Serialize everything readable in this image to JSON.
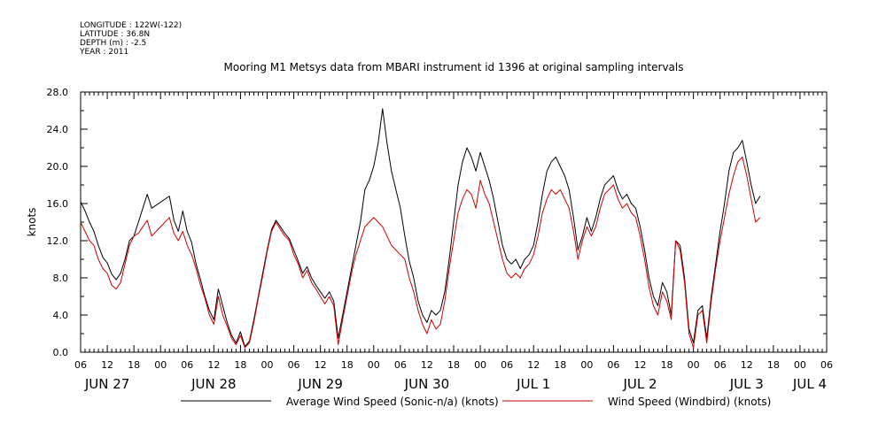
{
  "meta": {
    "lines": [
      "LONGITUDE : 122W(-122)",
      "LATITUDE : 36.8N",
      "DEPTH (m) : -2.5",
      "YEAR : 2011"
    ]
  },
  "colors": {
    "sonic": "#000000",
    "windbird": "#cc0000",
    "axis": "#000000"
  },
  "chart_data": {
    "type": "line",
    "title": "Mooring M1 Metsys data from MBARI instrument id 1396 at original sampling intervals",
    "xlabel": "",
    "ylabel": "knots",
    "x_unit": "hours since 06:00 Jun 27 2011",
    "xlim": [
      0,
      168
    ],
    "ylim": [
      0,
      28
    ],
    "yticks": [
      "0.0",
      "4.0",
      "8.0",
      "12.0",
      "16.0",
      "20.0",
      "24.0",
      "28.0"
    ],
    "yticks_values": [
      0,
      4,
      8,
      12,
      16,
      20,
      24,
      28
    ],
    "xtick_hours": [
      "06",
      "12",
      "18",
      "00",
      "06",
      "12",
      "18",
      "00",
      "06",
      "12",
      "18",
      "00",
      "06",
      "12",
      "18",
      "00",
      "06",
      "12",
      "18",
      "00",
      "06",
      "12",
      "18",
      "00",
      "06",
      "12",
      "18",
      "00",
      "06"
    ],
    "date_labels": [
      "JUN 27",
      "JUN 28",
      "JUN 29",
      "JUN 30",
      "JUL  1",
      "JUL  2",
      "JUL  3",
      "JUL 4"
    ],
    "date_label_hours": [
      6,
      30,
      54,
      78,
      102,
      126,
      150,
      168
    ],
    "grid": false,
    "legend_position": "bottom",
    "series": [
      {
        "name": "Average Wind Speed (Sonic-n/a) (knots)",
        "color": "#000000",
        "points": [
          [
            0,
            16.2
          ],
          [
            1,
            15.2
          ],
          [
            2,
            14.0
          ],
          [
            3,
            13.0
          ],
          [
            4,
            11.5
          ],
          [
            5,
            10.2
          ],
          [
            6,
            9.6
          ],
          [
            7,
            8.4
          ],
          [
            8,
            7.8
          ],
          [
            9,
            8.5
          ],
          [
            10,
            10.0
          ],
          [
            11,
            12.0
          ],
          [
            12,
            12.5
          ],
          [
            13,
            14.0
          ],
          [
            14,
            15.5
          ],
          [
            15,
            17.0
          ],
          [
            16,
            15.5
          ],
          [
            20,
            16.8
          ],
          [
            21,
            14.2
          ],
          [
            22,
            13.0
          ],
          [
            23,
            15.2
          ],
          [
            24,
            13.0
          ],
          [
            25,
            11.8
          ],
          [
            26,
            9.5
          ],
          [
            27,
            7.8
          ],
          [
            28,
            6.0
          ],
          [
            29,
            4.5
          ],
          [
            30,
            3.5
          ],
          [
            31,
            6.8
          ],
          [
            32,
            5.0
          ],
          [
            33,
            3.2
          ],
          [
            34,
            1.8
          ],
          [
            35,
            1.0
          ],
          [
            36,
            2.2
          ],
          [
            37,
            0.6
          ],
          [
            38,
            1.2
          ],
          [
            39,
            3.5
          ],
          [
            40,
            6.0
          ],
          [
            41,
            8.5
          ],
          [
            42,
            11.0
          ],
          [
            43,
            13.2
          ],
          [
            44,
            14.2
          ],
          [
            45,
            13.5
          ],
          [
            46,
            12.8
          ],
          [
            47,
            12.2
          ],
          [
            48,
            11.0
          ],
          [
            49,
            9.8
          ],
          [
            50,
            8.5
          ],
          [
            51,
            9.2
          ],
          [
            52,
            8.0
          ],
          [
            53,
            7.2
          ],
          [
            54,
            6.5
          ],
          [
            55,
            5.8
          ],
          [
            56,
            6.5
          ],
          [
            57,
            5.5
          ],
          [
            58,
            1.5
          ],
          [
            59,
            4.0
          ],
          [
            60,
            6.5
          ],
          [
            61,
            9.0
          ],
          [
            62,
            11.5
          ],
          [
            63,
            14.0
          ],
          [
            64,
            17.5
          ],
          [
            65,
            18.5
          ],
          [
            66,
            20.0
          ],
          [
            67,
            22.5
          ],
          [
            68,
            26.2
          ],
          [
            69,
            22.5
          ],
          [
            70,
            19.5
          ],
          [
            71,
            17.5
          ],
          [
            72,
            15.5
          ],
          [
            73,
            12.5
          ],
          [
            74,
            9.8
          ],
          [
            75,
            8.0
          ],
          [
            76,
            5.5
          ],
          [
            77,
            4.0
          ],
          [
            78,
            3.2
          ],
          [
            79,
            4.5
          ],
          [
            80,
            4.0
          ],
          [
            81,
            4.5
          ],
          [
            82,
            6.5
          ],
          [
            83,
            10.0
          ],
          [
            84,
            14.0
          ],
          [
            85,
            18.0
          ],
          [
            86,
            20.5
          ],
          [
            87,
            22.0
          ],
          [
            88,
            21.0
          ],
          [
            89,
            19.5
          ],
          [
            90,
            21.5
          ],
          [
            91,
            20.0
          ],
          [
            92,
            18.5
          ],
          [
            93,
            16.5
          ],
          [
            94,
            14.0
          ],
          [
            95,
            11.5
          ],
          [
            96,
            10.0
          ],
          [
            97,
            9.5
          ],
          [
            98,
            10.0
          ],
          [
            99,
            9.0
          ],
          [
            100,
            10.0
          ],
          [
            101,
            10.5
          ],
          [
            102,
            11.5
          ],
          [
            103,
            14.0
          ],
          [
            104,
            17.0
          ],
          [
            105,
            19.5
          ],
          [
            106,
            20.5
          ],
          [
            107,
            21.0
          ],
          [
            108,
            20.0
          ],
          [
            109,
            19.0
          ],
          [
            110,
            17.5
          ],
          [
            111,
            14.5
          ],
          [
            112,
            11.0
          ],
          [
            113,
            12.5
          ],
          [
            114,
            14.5
          ],
          [
            115,
            13.0
          ],
          [
            116,
            14.5
          ],
          [
            117,
            16.5
          ],
          [
            118,
            18.0
          ],
          [
            119,
            18.5
          ],
          [
            120,
            19.0
          ],
          [
            121,
            17.5
          ],
          [
            122,
            16.5
          ],
          [
            123,
            17.0
          ],
          [
            124,
            16.0
          ],
          [
            125,
            15.5
          ],
          [
            126,
            13.5
          ],
          [
            127,
            11.0
          ],
          [
            128,
            8.0
          ],
          [
            129,
            6.0
          ],
          [
            130,
            5.0
          ],
          [
            131,
            7.5
          ],
          [
            132,
            6.5
          ],
          [
            133,
            4.0
          ],
          [
            134,
            12.0
          ],
          [
            135,
            11.5
          ],
          [
            136,
            8.0
          ],
          [
            137,
            2.5
          ],
          [
            138,
            1.0
          ],
          [
            139,
            4.5
          ],
          [
            140,
            5.0
          ],
          [
            141,
            1.5
          ],
          [
            142,
            6.0
          ],
          [
            143,
            9.5
          ],
          [
            144,
            13.0
          ],
          [
            145,
            16.0
          ],
          [
            146,
            19.5
          ],
          [
            147,
            21.5
          ],
          [
            148,
            22.0
          ],
          [
            149,
            22.8
          ],
          [
            150,
            20.5
          ],
          [
            151,
            18.0
          ],
          [
            152,
            16.0
          ],
          [
            153,
            16.8
          ]
        ]
      },
      {
        "name": "Wind Speed (Windbird) (knots)",
        "color": "#cc0000",
        "points": [
          [
            0,
            14.0
          ],
          [
            1,
            13.0
          ],
          [
            2,
            12.0
          ],
          [
            3,
            11.5
          ],
          [
            4,
            10.0
          ],
          [
            5,
            9.0
          ],
          [
            6,
            8.5
          ],
          [
            7,
            7.2
          ],
          [
            8,
            6.8
          ],
          [
            9,
            7.5
          ],
          [
            10,
            9.5
          ],
          [
            11,
            11.5
          ],
          [
            12,
            12.5
          ],
          [
            13,
            12.8
          ],
          [
            14,
            13.5
          ],
          [
            15,
            14.2
          ],
          [
            16,
            12.5
          ],
          [
            20,
            14.5
          ],
          [
            21,
            12.8
          ],
          [
            22,
            12.0
          ],
          [
            23,
            13.0
          ],
          [
            24,
            11.5
          ],
          [
            25,
            10.5
          ],
          [
            26,
            9.0
          ],
          [
            27,
            7.2
          ],
          [
            28,
            5.8
          ],
          [
            29,
            4.0
          ],
          [
            30,
            3.0
          ],
          [
            31,
            6.0
          ],
          [
            32,
            4.0
          ],
          [
            33,
            2.8
          ],
          [
            34,
            1.5
          ],
          [
            35,
            0.8
          ],
          [
            36,
            1.8
          ],
          [
            37,
            0.5
          ],
          [
            38,
            1.0
          ],
          [
            39,
            3.2
          ],
          [
            40,
            5.8
          ],
          [
            41,
            8.2
          ],
          [
            42,
            10.8
          ],
          [
            43,
            13.0
          ],
          [
            44,
            14.0
          ],
          [
            45,
            13.2
          ],
          [
            46,
            12.5
          ],
          [
            47,
            12.0
          ],
          [
            48,
            10.5
          ],
          [
            49,
            9.5
          ],
          [
            50,
            8.0
          ],
          [
            51,
            8.8
          ],
          [
            52,
            7.5
          ],
          [
            53,
            6.8
          ],
          [
            54,
            6.0
          ],
          [
            55,
            5.2
          ],
          [
            56,
            6.0
          ],
          [
            57,
            5.0
          ],
          [
            58,
            0.8
          ],
          [
            59,
            3.5
          ],
          [
            60,
            6.0
          ],
          [
            61,
            8.5
          ],
          [
            62,
            10.5
          ],
          [
            63,
            12.0
          ],
          [
            64,
            13.5
          ],
          [
            65,
            14.0
          ],
          [
            66,
            14.5
          ],
          [
            67,
            14.0
          ],
          [
            68,
            13.5
          ],
          [
            69,
            12.5
          ],
          [
            70,
            11.5
          ],
          [
            71,
            11.0
          ],
          [
            72,
            10.5
          ],
          [
            73,
            10.0
          ],
          [
            74,
            8.0
          ],
          [
            75,
            6.5
          ],
          [
            76,
            4.5
          ],
          [
            77,
            3.0
          ],
          [
            78,
            2.0
          ],
          [
            79,
            3.5
          ],
          [
            80,
            2.5
          ],
          [
            81,
            3.0
          ],
          [
            82,
            5.5
          ],
          [
            83,
            9.0
          ],
          [
            84,
            12.0
          ],
          [
            85,
            15.0
          ],
          [
            86,
            16.5
          ],
          [
            87,
            17.5
          ],
          [
            88,
            17.0
          ],
          [
            89,
            15.5
          ],
          [
            90,
            18.5
          ],
          [
            91,
            17.0
          ],
          [
            92,
            16.0
          ],
          [
            93,
            14.0
          ],
          [
            94,
            12.0
          ],
          [
            95,
            10.0
          ],
          [
            96,
            8.5
          ],
          [
            97,
            8.0
          ],
          [
            98,
            8.5
          ],
          [
            99,
            8.0
          ],
          [
            100,
            9.0
          ],
          [
            101,
            9.5
          ],
          [
            102,
            10.5
          ],
          [
            103,
            12.5
          ],
          [
            104,
            15.0
          ],
          [
            105,
            16.5
          ],
          [
            106,
            17.5
          ],
          [
            107,
            17.0
          ],
          [
            108,
            17.5
          ],
          [
            109,
            16.5
          ],
          [
            110,
            15.5
          ],
          [
            111,
            13.0
          ],
          [
            112,
            10.0
          ],
          [
            113,
            12.0
          ],
          [
            114,
            13.5
          ],
          [
            115,
            12.5
          ],
          [
            116,
            13.5
          ],
          [
            117,
            15.5
          ],
          [
            118,
            17.0
          ],
          [
            119,
            17.5
          ],
          [
            120,
            18.0
          ],
          [
            121,
            16.5
          ],
          [
            122,
            15.5
          ],
          [
            123,
            16.0
          ],
          [
            124,
            15.0
          ],
          [
            125,
            14.5
          ],
          [
            126,
            12.5
          ],
          [
            127,
            10.0
          ],
          [
            128,
            7.0
          ],
          [
            129,
            5.0
          ],
          [
            130,
            4.0
          ],
          [
            131,
            6.5
          ],
          [
            132,
            5.5
          ],
          [
            133,
            3.5
          ],
          [
            134,
            12.0
          ],
          [
            135,
            11.0
          ],
          [
            136,
            7.5
          ],
          [
            137,
            2.0
          ],
          [
            138,
            0.5
          ],
          [
            139,
            4.0
          ],
          [
            140,
            4.5
          ],
          [
            141,
            1.0
          ],
          [
            142,
            5.5
          ],
          [
            143,
            9.0
          ],
          [
            144,
            12.0
          ],
          [
            145,
            14.5
          ],
          [
            146,
            17.0
          ],
          [
            147,
            19.0
          ],
          [
            148,
            20.5
          ],
          [
            149,
            21.0
          ],
          [
            150,
            19.0
          ],
          [
            151,
            16.5
          ],
          [
            152,
            14.0
          ],
          [
            153,
            14.5
          ]
        ]
      }
    ]
  }
}
